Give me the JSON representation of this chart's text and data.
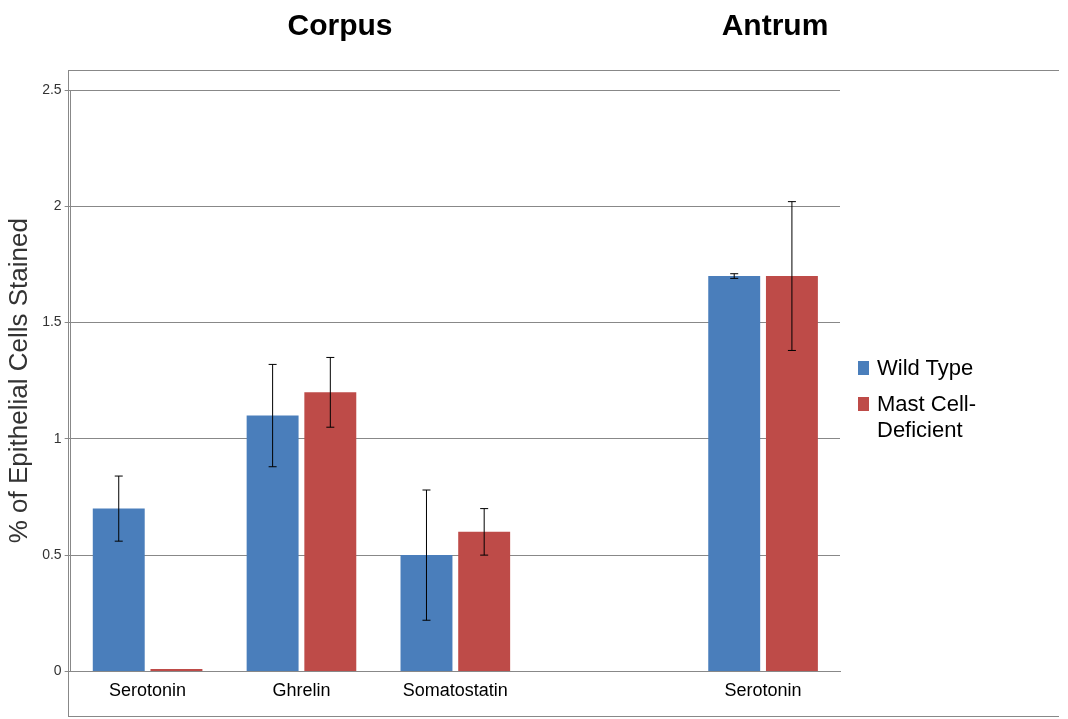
{
  "chart_data": {
    "type": "bar",
    "ylabel": "% of Epithelial Cells Stained",
    "annotations": [
      "Corpus",
      "Antrum"
    ],
    "categories": [
      "Serotonin",
      "Ghrelin",
      "Somatostatin",
      null,
      "Serotonin"
    ],
    "series": [
      {
        "name": "Wild Type",
        "color": "#4a7ebb",
        "values": [
          0.7,
          1.1,
          0.5,
          null,
          1.7
        ],
        "errors": [
          0.14,
          0.22,
          0.28,
          null,
          0.01
        ]
      },
      {
        "name": "Mast Cell-Deficient",
        "color": "#be4b48",
        "values": [
          0.01,
          1.2,
          0.6,
          null,
          1.7
        ],
        "errors": [
          null,
          0.15,
          0.1,
          null,
          0.32
        ]
      }
    ],
    "ylim": [
      0,
      2.5
    ],
    "yticks": [
      0,
      0.5,
      1,
      1.5,
      2,
      2.5
    ],
    "grid": "y",
    "legend": "right"
  }
}
